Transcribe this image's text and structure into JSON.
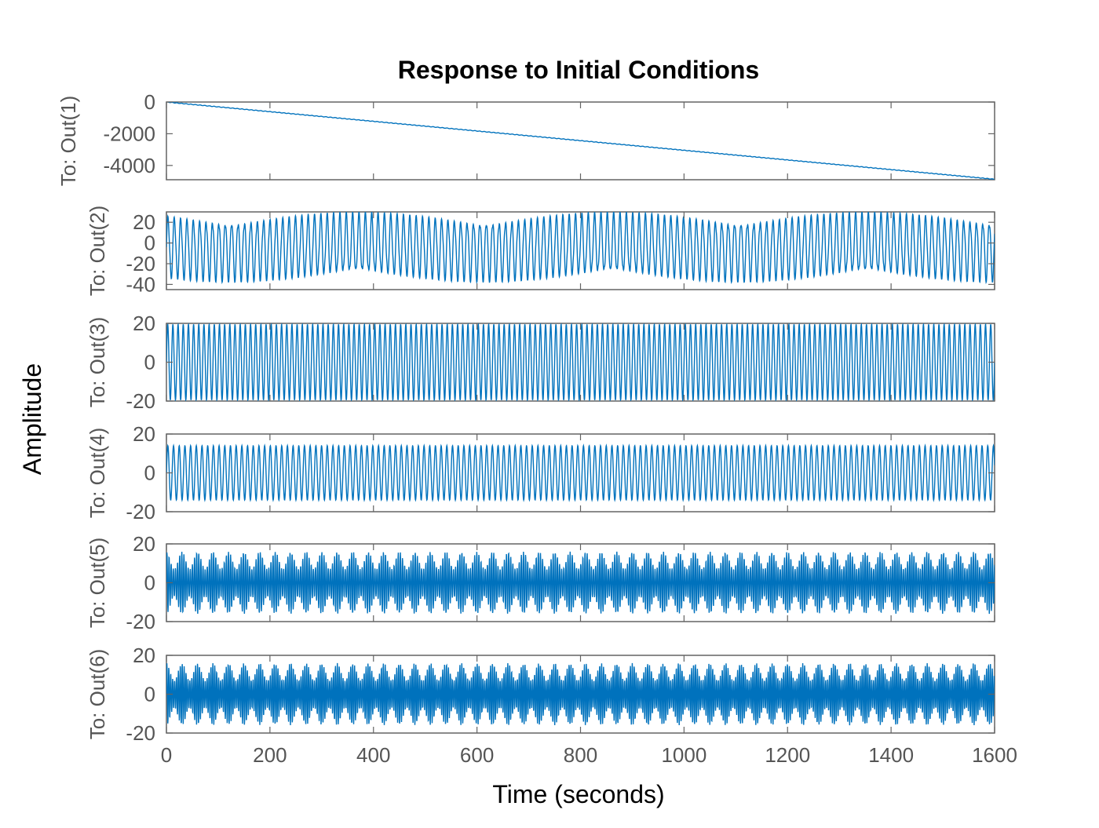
{
  "chart_data": {
    "type": "line",
    "title": "Response to Initial Conditions",
    "xlabel": "Time (seconds)",
    "ylabel": "Amplitude",
    "xlim": [
      0,
      1600
    ],
    "xticks": [
      "0",
      "200",
      "400",
      "600",
      "800",
      "1000",
      "1200",
      "1400",
      "1600"
    ],
    "grid": false,
    "line_color": "#0072BD",
    "axes_color": "#646464",
    "tick_label_color": "#555555",
    "subplots": [
      {
        "ylabel": "To: Out(1)",
        "ylim": [
          -4900,
          0
        ],
        "yticks": [
          "0",
          "-2000",
          "-4000"
        ],
        "ytick_values": [
          0,
          -2000,
          -4000
        ],
        "signal": {
          "kind": "ramp",
          "start": 0,
          "end": -4870,
          "ripple": 15
        }
      },
      {
        "ylabel": "To: Out(2)",
        "ylim": [
          -45,
          30
        ],
        "yticks": [
          "20",
          "0",
          "-20",
          "-40"
        ],
        "ytick_values": [
          20,
          0,
          -20,
          -40
        ],
        "signal": {
          "kind": "beat",
          "max": 30,
          "min": -38,
          "offset": -4,
          "period": 12.3
        }
      },
      {
        "ylabel": "To: Out(3)",
        "ylim": [
          -20,
          20
        ],
        "yticks": [
          "20",
          "0",
          "-20"
        ],
        "ytick_values": [
          20,
          0,
          -20
        ],
        "signal": {
          "kind": "sine",
          "amplitude": 19.5,
          "offset": 0,
          "period": 10.0
        }
      },
      {
        "ylabel": "To: Out(4)",
        "ylim": [
          -20,
          20
        ],
        "yticks": [
          "20",
          "0",
          "-20"
        ],
        "ytick_values": [
          20,
          0,
          -20
        ],
        "signal": {
          "kind": "sine",
          "amplitude": 14,
          "offset": 0,
          "period": 11.0
        }
      },
      {
        "ylabel": "To: Out(5)",
        "ylim": [
          -20,
          20
        ],
        "yticks": [
          "20",
          "0",
          "-20"
        ],
        "ytick_values": [
          20,
          0,
          -20
        ],
        "signal": {
          "kind": "dense",
          "amplitude": 16,
          "offset": 0,
          "period": 4.1
        }
      },
      {
        "ylabel": "To: Out(6)",
        "ylim": [
          -20,
          20
        ],
        "yticks": [
          "20",
          "0",
          "-20"
        ],
        "ytick_values": [
          20,
          0,
          -20
        ],
        "signal": {
          "kind": "dense",
          "amplitude": 16,
          "offset": 0,
          "period": 3.7
        }
      }
    ]
  }
}
